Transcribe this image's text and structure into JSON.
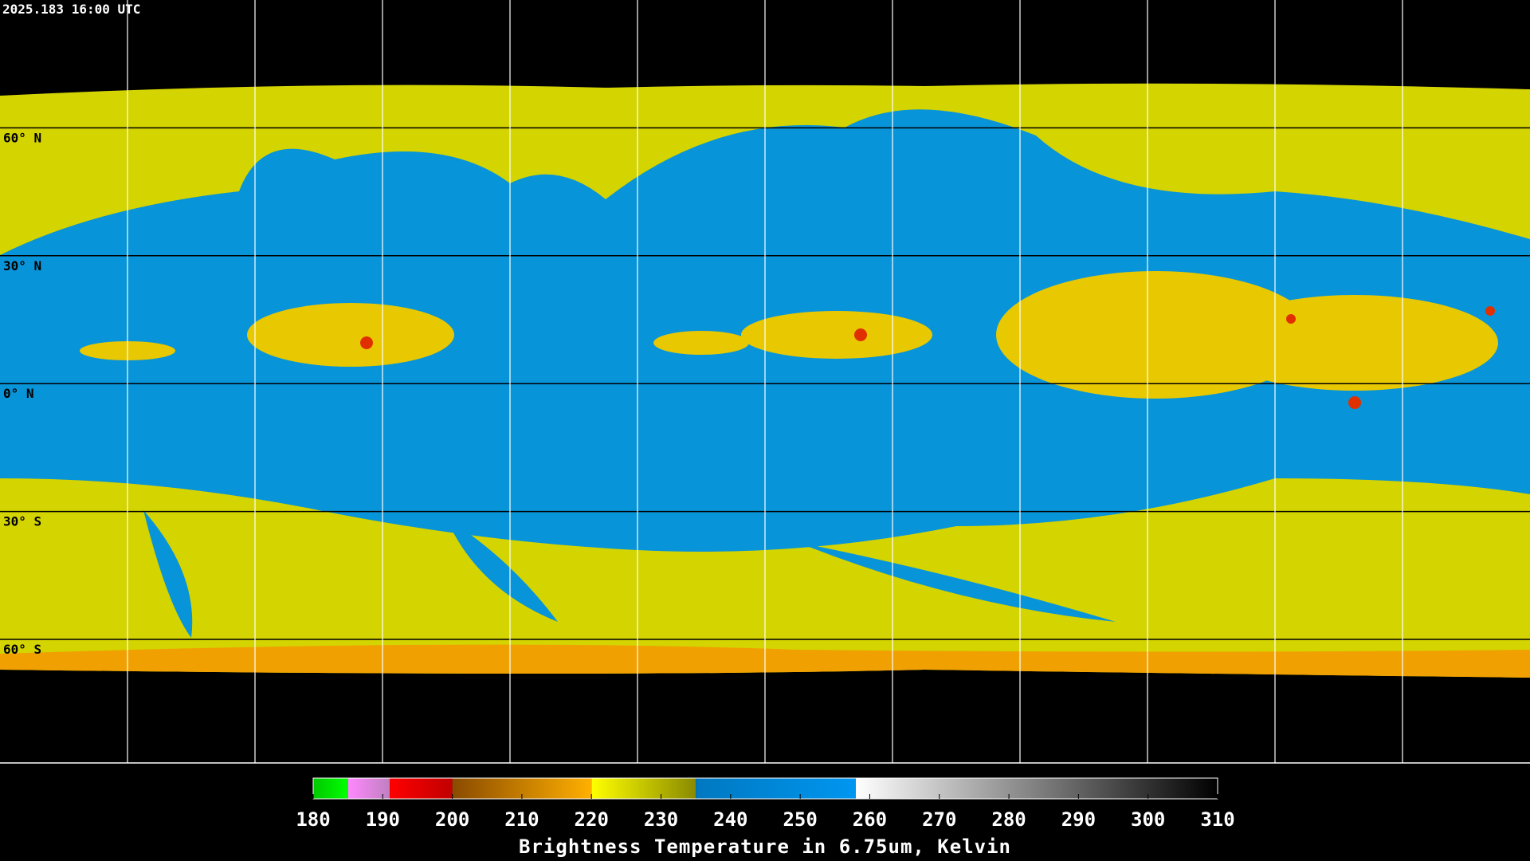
{
  "header": {
    "timestamp": "2025.183 16:00 UTC"
  },
  "map": {
    "latitude_labels": [
      "60° N",
      "30° N",
      "0° N",
      "30° S",
      "60° S"
    ]
  },
  "colorbar": {
    "title": "Brightness Temperature in 6.75um, Kelvin",
    "range": [
      180,
      310
    ],
    "ticks": [
      180,
      190,
      200,
      210,
      220,
      230,
      240,
      250,
      260,
      270,
      280,
      290,
      300,
      310
    ],
    "segments": [
      {
        "from": 180,
        "to": 185,
        "colors": [
          "#00c800",
          "#00ff00"
        ]
      },
      {
        "from": 185,
        "to": 191,
        "colors": [
          "#ff88ff",
          "#c080c0"
        ]
      },
      {
        "from": 191,
        "to": 200,
        "colors": [
          "#ff0000",
          "#c00000"
        ]
      },
      {
        "from": 200,
        "to": 220,
        "colors": [
          "#8a4a00",
          "#ffb000"
        ]
      },
      {
        "from": 220,
        "to": 235,
        "colors": [
          "#ffff00",
          "#8a8a00"
        ]
      },
      {
        "from": 235,
        "to": 258,
        "colors": [
          "#0078c0",
          "#0096f0"
        ]
      },
      {
        "from": 258,
        "to": 310,
        "colors": [
          "#ffffff",
          "#000000"
        ]
      }
    ]
  }
}
